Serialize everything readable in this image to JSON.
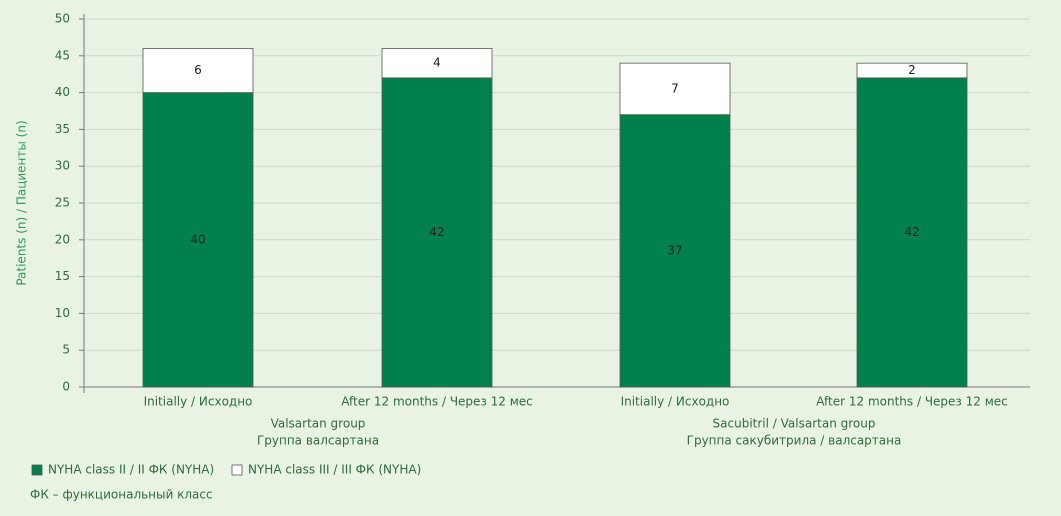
{
  "chart_data": {
    "type": "stacked_bar",
    "y_label": "Patients (n) / Пациенты (n)",
    "categories": [
      "Initially / Исходно",
      "After 12 months / Через 12 мес",
      "Initially / Исходно",
      "After 12 months / Через 12 мес"
    ],
    "groups": [
      [
        "Valsartan group",
        "Группа валсартана"
      ],
      [
        "Sacubitril / Valsartan group",
        "Группа сакубитрила / валсартана"
      ]
    ],
    "series": [
      {
        "name": "NYHA class II / II ФК (NYHA)",
        "color": "#00804a",
        "values": [
          40,
          42,
          37,
          42
        ]
      },
      {
        "name": "NYHA class III / III ФК (NYHA)",
        "color": "#ffffff",
        "values": [
          6,
          4,
          7,
          2
        ]
      }
    ],
    "ylim": [
      0,
      50
    ],
    "yticks": [
      0,
      5,
      10,
      15,
      20,
      25,
      30,
      35,
      40,
      45,
      50
    ],
    "grid": true,
    "note": "ФК – функциональный класс"
  }
}
